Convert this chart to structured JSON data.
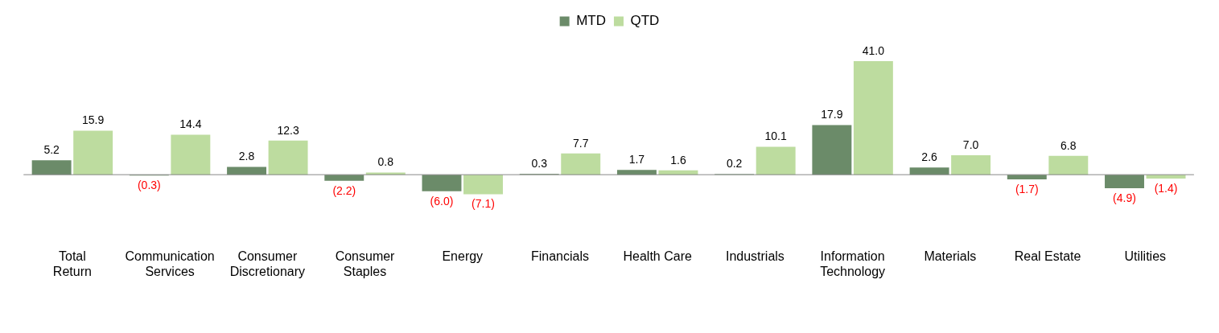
{
  "chart_data": {
    "type": "bar",
    "categories": [
      "Total Return",
      "Communication Services",
      "Consumer Discretionary",
      "Consumer Staples",
      "Energy",
      "Financials",
      "Health Care",
      "Industrials",
      "Information Technology",
      "Materials",
      "Real Estate",
      "Utilities"
    ],
    "series": [
      {
        "name": "MTD",
        "color": "#6b8b69",
        "values": [
          5.2,
          -0.3,
          2.8,
          -2.2,
          -6.0,
          0.3,
          1.7,
          0.2,
          17.9,
          2.6,
          -1.7,
          -4.9
        ],
        "value_labels": [
          "5.2",
          "(0.3)",
          "2.8",
          "(2.2)",
          "(6.0)",
          "0.3",
          "1.7",
          "0.2",
          "17.9",
          "2.6",
          "(1.7)",
          "(4.9)"
        ]
      },
      {
        "name": "QTD",
        "color": "#bddc9f",
        "values": [
          15.9,
          14.4,
          12.3,
          0.8,
          -7.1,
          7.7,
          1.6,
          10.1,
          41.0,
          7.0,
          6.8,
          -1.4
        ],
        "value_labels": [
          "15.9",
          "14.4",
          "12.3",
          "0.8",
          "(7.1)",
          "7.7",
          "1.6",
          "10.1",
          "41.0",
          "7.0",
          "6.8",
          "(1.4)"
        ]
      }
    ],
    "legend": "top",
    "grid": false
  }
}
